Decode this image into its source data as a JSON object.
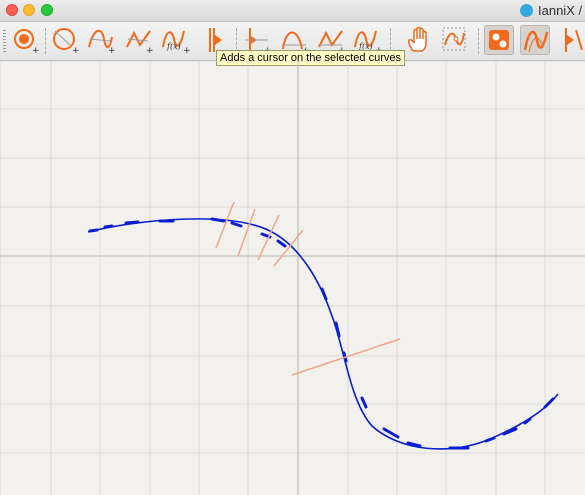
{
  "window": {
    "title": "IanniX /"
  },
  "traffic_lights": [
    "close",
    "minimize",
    "zoom"
  ],
  "toolbar": {
    "tools": [
      {
        "name": "add-trigger",
        "icon": "trigger-add-icon"
      },
      {
        "name": "add-circle-curve",
        "icon": "circle-curve-add-icon"
      },
      {
        "name": "add-smooth-curve",
        "icon": "smooth-curve-add-icon"
      },
      {
        "name": "add-linear-curve",
        "icon": "linear-curve-add-icon"
      },
      {
        "name": "add-math-curve",
        "icon": "math-curve-add-icon"
      },
      {
        "name": "add-cursor-on-curve",
        "icon": "cursor-on-curve-icon"
      },
      {
        "name": "add-cursor",
        "icon": "cursor-add-icon"
      },
      {
        "name": "add-smooth-curve-cursor",
        "icon": "smooth-curve-cursor-icon"
      },
      {
        "name": "add-linear-curve-cursor",
        "icon": "linear-curve-cursor-icon"
      },
      {
        "name": "add-math-curve-cursor",
        "icon": "math-curve-cursor-icon"
      },
      {
        "name": "hand-tool",
        "icon": "hand-icon"
      },
      {
        "name": "edit-points",
        "icon": "edit-points-icon"
      },
      {
        "name": "snap-triggers",
        "icon": "snap-triggers-icon",
        "pressed": true
      },
      {
        "name": "snap-curves",
        "icon": "snap-curves-icon",
        "pressed": true
      },
      {
        "name": "snap-cursors",
        "icon": "snap-cursors-icon"
      }
    ],
    "math_label": "f(x)"
  },
  "tooltip": {
    "text": "Adds a cursor on the selected curves"
  },
  "colors": {
    "accent_orange": "#f26b1d",
    "curve_blue": "#0a1fd1",
    "cursor_salmon": "#f2a585",
    "grid": "#dddbd6",
    "axis": "#c9c7c2",
    "canvas_bg": "#f2f1ee"
  },
  "scene": {
    "curve_count": 1,
    "cursor_count": 5
  }
}
